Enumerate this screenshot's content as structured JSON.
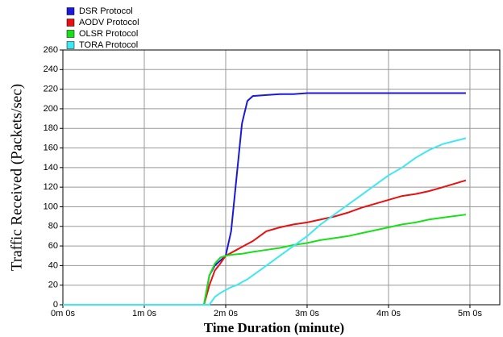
{
  "chart_data": {
    "type": "line",
    "xlabel": "Time Duration (minute)",
    "ylabel": "Traffic Received (Packets/sec)",
    "x": [
      0,
      104,
      108,
      112,
      116,
      120,
      124,
      128,
      132,
      136,
      140,
      150,
      160,
      170,
      180,
      190,
      200,
      210,
      220,
      230,
      240,
      250,
      260,
      270,
      280,
      297
    ],
    "series": [
      {
        "name": "DSR Protocol",
        "color": "#1a1ad8",
        "values": [
          0,
          0,
          30,
          40,
          45,
          50,
          75,
          130,
          185,
          208,
          213,
          214,
          215,
          215,
          216,
          216,
          216,
          216,
          216,
          216,
          216,
          216,
          216,
          216,
          216,
          216
        ]
      },
      {
        "name": "AODV Protocol",
        "color": "#e81010",
        "values": [
          0,
          0,
          20,
          35,
          42,
          50,
          53,
          56,
          59,
          62,
          65,
          75,
          79,
          82,
          84,
          87,
          90,
          94,
          99,
          103,
          107,
          111,
          113,
          116,
          120,
          127
        ]
      },
      {
        "name": "OLSR Protocol",
        "color": "#18e018",
        "values": [
          0,
          0,
          30,
          42,
          48,
          50,
          51,
          51.5,
          52,
          53,
          54,
          56,
          58,
          61,
          63,
          66,
          68,
          70,
          73,
          76,
          79,
          82,
          84,
          87,
          89,
          92
        ]
      },
      {
        "name": "TORA Protocol",
        "color": "#3ee8f2",
        "values": [
          0,
          0,
          0,
          8,
          12,
          15,
          18,
          20,
          23,
          26,
          30,
          40,
          50,
          60,
          70,
          82,
          92,
          102,
          112,
          122,
          132,
          140,
          150,
          158,
          164,
          170
        ]
      }
    ],
    "xlim": [
      0,
      322
    ],
    "xticks": [
      {
        "value": 0,
        "label": "0m 0s"
      },
      {
        "value": 60,
        "label": "1m 0s"
      },
      {
        "value": 120,
        "label": "2m 0s"
      },
      {
        "value": 180,
        "label": "3m 0s"
      },
      {
        "value": 240,
        "label": "4m 0s"
      },
      {
        "value": 300,
        "label": "5m 0s"
      }
    ],
    "ylim": [
      0,
      260
    ],
    "yticks": [
      0,
      20,
      40,
      60,
      80,
      100,
      120,
      140,
      160,
      180,
      200,
      220,
      240,
      260
    ],
    "grid": true,
    "legend": "top-left"
  }
}
